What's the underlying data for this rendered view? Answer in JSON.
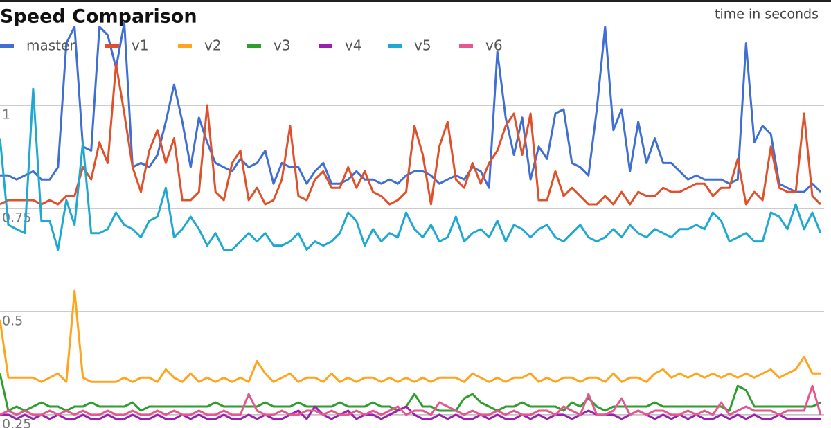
{
  "chart_data": {
    "type": "line",
    "title": "Speed Comparison",
    "subtitle": "time in seconds",
    "ylim": [
      0.218,
      1.255
    ],
    "yticks": [
      0.25,
      0.5,
      0.75,
      1
    ],
    "grid": true,
    "legend": "top-left",
    "series": [
      {
        "name": "master",
        "color": "#3f6fd4",
        "values": [
          0.83,
          0.83,
          0.82,
          0.83,
          0.84,
          0.82,
          0.82,
          0.85,
          1.15,
          1.19,
          0.9,
          0.89,
          1.19,
          1.17,
          1.09,
          1.2,
          0.85,
          0.86,
          0.85,
          0.88,
          0.96,
          1.05,
          0.96,
          0.85,
          0.97,
          0.91,
          0.86,
          0.85,
          0.84,
          0.87,
          0.85,
          0.86,
          0.89,
          0.81,
          0.86,
          0.85,
          0.85,
          0.81,
          0.84,
          0.86,
          0.81,
          0.81,
          0.82,
          0.84,
          0.82,
          0.82,
          0.81,
          0.82,
          0.81,
          0.83,
          0.84,
          0.84,
          0.83,
          0.81,
          0.82,
          0.83,
          0.82,
          0.85,
          0.84,
          0.8,
          1.13,
          0.97,
          0.88,
          0.97,
          0.82,
          0.9,
          0.87,
          0.98,
          0.99,
          0.86,
          0.85,
          0.83,
          0.99,
          1.19,
          0.94,
          0.99,
          0.84,
          0.96,
          0.86,
          0.92,
          0.86,
          0.86,
          0.84,
          0.82,
          0.83,
          0.82,
          0.82,
          0.82,
          0.81,
          0.82,
          1.15,
          0.91,
          0.95,
          0.93,
          0.81,
          0.8,
          0.79,
          0.79,
          0.81,
          0.79
        ]
      },
      {
        "name": "v1",
        "color": "#e0502a",
        "values": [
          0.76,
          0.77,
          0.77,
          0.77,
          0.77,
          0.76,
          0.77,
          0.76,
          0.78,
          0.78,
          0.85,
          0.82,
          0.91,
          0.86,
          1.1,
          0.98,
          0.85,
          0.79,
          0.89,
          0.94,
          0.86,
          0.92,
          0.77,
          0.77,
          0.79,
          1.0,
          0.79,
          0.77,
          0.86,
          0.89,
          0.77,
          0.8,
          0.76,
          0.77,
          0.82,
          0.95,
          0.78,
          0.77,
          0.82,
          0.84,
          0.8,
          0.8,
          0.85,
          0.8,
          0.84,
          0.79,
          0.78,
          0.76,
          0.77,
          0.79,
          0.95,
          0.88,
          0.76,
          0.9,
          0.96,
          0.82,
          0.8,
          0.86,
          0.81,
          0.86,
          0.89,
          0.95,
          0.98,
          0.88,
          0.98,
          0.77,
          0.77,
          0.84,
          0.78,
          0.8,
          0.78,
          0.76,
          0.76,
          0.78,
          0.76,
          0.79,
          0.76,
          0.79,
          0.78,
          0.78,
          0.8,
          0.79,
          0.79,
          0.8,
          0.81,
          0.81,
          0.78,
          0.8,
          0.8,
          0.87,
          0.76,
          0.79,
          0.77,
          0.9,
          0.8,
          0.79,
          0.79,
          0.98,
          0.78,
          0.76
        ]
      },
      {
        "name": "v2",
        "color": "#ffa41c",
        "values": [
          0.48,
          0.34,
          0.34,
          0.34,
          0.34,
          0.33,
          0.34,
          0.35,
          0.33,
          0.55,
          0.34,
          0.33,
          0.33,
          0.33,
          0.33,
          0.34,
          0.33,
          0.34,
          0.34,
          0.33,
          0.36,
          0.34,
          0.33,
          0.35,
          0.33,
          0.34,
          0.33,
          0.34,
          0.33,
          0.34,
          0.33,
          0.38,
          0.35,
          0.33,
          0.34,
          0.35,
          0.33,
          0.34,
          0.34,
          0.33,
          0.35,
          0.33,
          0.34,
          0.33,
          0.34,
          0.34,
          0.33,
          0.34,
          0.33,
          0.34,
          0.33,
          0.34,
          0.33,
          0.34,
          0.34,
          0.34,
          0.33,
          0.35,
          0.34,
          0.33,
          0.34,
          0.33,
          0.34,
          0.34,
          0.35,
          0.33,
          0.34,
          0.33,
          0.34,
          0.34,
          0.33,
          0.34,
          0.34,
          0.33,
          0.35,
          0.33,
          0.34,
          0.34,
          0.33,
          0.35,
          0.36,
          0.34,
          0.35,
          0.34,
          0.35,
          0.34,
          0.35,
          0.34,
          0.35,
          0.34,
          0.35,
          0.34,
          0.35,
          0.36,
          0.34,
          0.35,
          0.36,
          0.39,
          0.35,
          0.35
        ]
      },
      {
        "name": "v3",
        "color": "#2e9e2e",
        "values": [
          0.35,
          0.26,
          0.27,
          0.26,
          0.27,
          0.28,
          0.27,
          0.27,
          0.26,
          0.27,
          0.27,
          0.28,
          0.27,
          0.27,
          0.27,
          0.27,
          0.28,
          0.26,
          0.27,
          0.27,
          0.27,
          0.27,
          0.27,
          0.27,
          0.27,
          0.27,
          0.28,
          0.27,
          0.27,
          0.27,
          0.27,
          0.27,
          0.28,
          0.27,
          0.27,
          0.27,
          0.28,
          0.27,
          0.27,
          0.27,
          0.27,
          0.28,
          0.27,
          0.27,
          0.27,
          0.28,
          0.27,
          0.27,
          0.26,
          0.27,
          0.3,
          0.27,
          0.27,
          0.26,
          0.26,
          0.26,
          0.29,
          0.3,
          0.28,
          0.27,
          0.26,
          0.27,
          0.27,
          0.28,
          0.27,
          0.27,
          0.27,
          0.27,
          0.26,
          0.28,
          0.27,
          0.29,
          0.27,
          0.26,
          0.27,
          0.27,
          0.27,
          0.27,
          0.27,
          0.28,
          0.27,
          0.27,
          0.27,
          0.27,
          0.27,
          0.27,
          0.27,
          0.27,
          0.26,
          0.32,
          0.31,
          0.27,
          0.27,
          0.27,
          0.27,
          0.27,
          0.27,
          0.27,
          0.27,
          0.28
        ]
      },
      {
        "name": "v4",
        "color": "#9c1fb0",
        "values": [
          0.25,
          0.25,
          0.24,
          0.25,
          0.24,
          0.25,
          0.24,
          0.25,
          0.24,
          0.24,
          0.25,
          0.24,
          0.24,
          0.25,
          0.24,
          0.24,
          0.25,
          0.24,
          0.24,
          0.25,
          0.24,
          0.24,
          0.25,
          0.24,
          0.25,
          0.24,
          0.24,
          0.25,
          0.24,
          0.24,
          0.25,
          0.24,
          0.25,
          0.24,
          0.24,
          0.25,
          0.26,
          0.24,
          0.27,
          0.25,
          0.24,
          0.25,
          0.26,
          0.24,
          0.25,
          0.25,
          0.24,
          0.25,
          0.26,
          0.27,
          0.25,
          0.24,
          0.24,
          0.25,
          0.24,
          0.25,
          0.24,
          0.24,
          0.25,
          0.24,
          0.25,
          0.24,
          0.24,
          0.25,
          0.24,
          0.25,
          0.24,
          0.25,
          0.25,
          0.24,
          0.25,
          0.26,
          0.25,
          0.25,
          0.25,
          0.24,
          0.25,
          0.26,
          0.25,
          0.24,
          0.25,
          0.24,
          0.25,
          0.24,
          0.25,
          0.24,
          0.24,
          0.25,
          0.24,
          0.25,
          0.24,
          0.25,
          0.24,
          0.24,
          0.25,
          0.24,
          0.24,
          0.24,
          0.24,
          0.24
        ]
      },
      {
        "name": "v5",
        "color": "#1fa8d0",
        "values": [
          0.92,
          0.71,
          0.7,
          0.69,
          1.04,
          0.72,
          0.72,
          0.65,
          0.77,
          0.71,
          0.91,
          0.69,
          0.69,
          0.7,
          0.74,
          0.71,
          0.7,
          0.68,
          0.72,
          0.73,
          0.8,
          0.68,
          0.7,
          0.73,
          0.7,
          0.66,
          0.69,
          0.65,
          0.65,
          0.67,
          0.69,
          0.67,
          0.69,
          0.66,
          0.66,
          0.67,
          0.69,
          0.65,
          0.67,
          0.66,
          0.67,
          0.69,
          0.74,
          0.72,
          0.66,
          0.7,
          0.67,
          0.69,
          0.68,
          0.74,
          0.7,
          0.68,
          0.71,
          0.67,
          0.68,
          0.73,
          0.67,
          0.69,
          0.7,
          0.68,
          0.72,
          0.67,
          0.71,
          0.7,
          0.68,
          0.7,
          0.71,
          0.68,
          0.67,
          0.69,
          0.71,
          0.68,
          0.67,
          0.68,
          0.7,
          0.68,
          0.71,
          0.69,
          0.68,
          0.7,
          0.69,
          0.68,
          0.7,
          0.7,
          0.71,
          0.7,
          0.74,
          0.72,
          0.67,
          0.68,
          0.69,
          0.67,
          0.67,
          0.74,
          0.73,
          0.7,
          0.76,
          0.7,
          0.74,
          0.69
        ]
      },
      {
        "name": "v6",
        "color": "#e4578f",
        "values": [
          0.25,
          0.26,
          0.25,
          0.26,
          0.25,
          0.25,
          0.26,
          0.25,
          0.26,
          0.25,
          0.26,
          0.25,
          0.25,
          0.26,
          0.25,
          0.25,
          0.26,
          0.25,
          0.25,
          0.26,
          0.25,
          0.26,
          0.25,
          0.25,
          0.26,
          0.25,
          0.25,
          0.26,
          0.25,
          0.25,
          0.3,
          0.26,
          0.25,
          0.25,
          0.26,
          0.25,
          0.25,
          0.26,
          0.26,
          0.25,
          0.26,
          0.25,
          0.25,
          0.26,
          0.25,
          0.26,
          0.25,
          0.26,
          0.27,
          0.25,
          0.26,
          0.26,
          0.25,
          0.28,
          0.27,
          0.26,
          0.25,
          0.26,
          0.25,
          0.25,
          0.26,
          0.25,
          0.26,
          0.25,
          0.25,
          0.26,
          0.26,
          0.25,
          0.27,
          0.26,
          0.25,
          0.3,
          0.25,
          0.25,
          0.26,
          0.29,
          0.25,
          0.26,
          0.25,
          0.26,
          0.26,
          0.25,
          0.25,
          0.26,
          0.25,
          0.26,
          0.25,
          0.28,
          0.25,
          0.26,
          0.27,
          0.26,
          0.26,
          0.26,
          0.25,
          0.26,
          0.26,
          0.26,
          0.32,
          0.25
        ]
      }
    ]
  }
}
